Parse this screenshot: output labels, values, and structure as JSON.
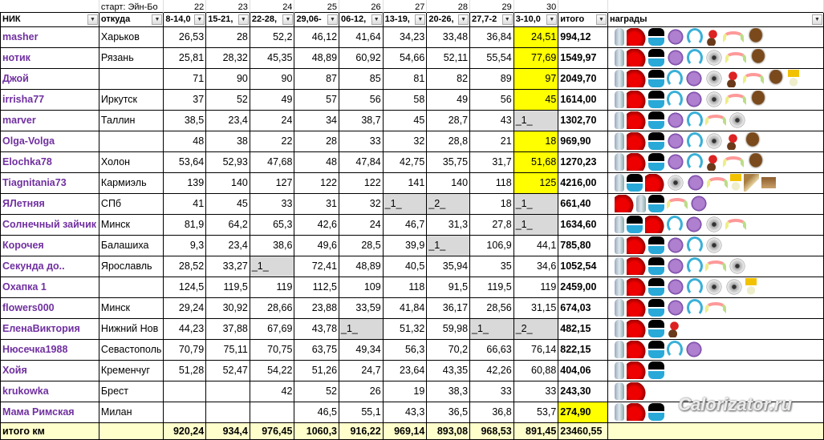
{
  "header": {
    "start_label": "старт: Эйн-Бо",
    "week_numbers": [
      "22",
      "23",
      "24",
      "25",
      "26",
      "27",
      "28",
      "29",
      "30"
    ],
    "columns": [
      "НИК",
      "откуда",
      "8-14,0",
      "15-21,",
      "22-28,",
      "29,06-",
      "06-12,",
      "13-19,",
      "20-26,",
      "27,7-2",
      "3-10,0",
      "итого",
      "награды"
    ]
  },
  "colors": {
    "nick": "#7030a0",
    "highlight": "#ffff00",
    "empty_cell": "#d9d9d9",
    "footer": "#ffffcc"
  },
  "rows": [
    {
      "nick": "masher",
      "city": "Харьков",
      "w": [
        "26,53",
        "28",
        "52,2",
        "46,12",
        "41,64",
        "34,23",
        "33,48",
        "36,84",
        "24,51"
      ],
      "total": "994,12",
      "awards": [
        "bottle",
        "shoes",
        "sneak",
        "bfly",
        "phones",
        "dessert",
        "rainbow",
        "cup"
      ]
    },
    {
      "nick": "нотик",
      "city": "Рязань",
      "w": [
        "25,81",
        "28,32",
        "45,35",
        "48,89",
        "60,92",
        "54,66",
        "52,11",
        "55,54",
        "77,69"
      ],
      "total": "1549,97",
      "awards": [
        "bottle",
        "shoes",
        "sneak",
        "bfly",
        "phones",
        "fan",
        "rainbow",
        "cup"
      ]
    },
    {
      "nick": "Джой",
      "city": "",
      "w": [
        "71",
        "90",
        "90",
        "87",
        "85",
        "81",
        "82",
        "89",
        "97"
      ],
      "total": "2049,70",
      "awards": [
        "bottle",
        "shoes",
        "sneak",
        "phones",
        "bfly",
        "fan",
        "dessert",
        "rainbow",
        "cup",
        "cocktail"
      ]
    },
    {
      "nick": "irrisha77",
      "city": "Иркутск",
      "w": [
        "37",
        "52",
        "49",
        "57",
        "56",
        "58",
        "49",
        "56",
        "45"
      ],
      "total": "1614,00",
      "awards": [
        "bottle",
        "shoes",
        "sneak",
        "phones",
        "bfly",
        "fan",
        "rainbow",
        "cup"
      ]
    },
    {
      "nick": "marver",
      "city": "Таллин",
      "w": [
        "38,5",
        "23,4",
        "24",
        "34",
        "38,7",
        "45",
        "28,7",
        "43",
        "_1_"
      ],
      "total": "1302,70",
      "awards": [
        "bottle",
        "shoes",
        "sneak",
        "bfly",
        "phones",
        "rainbow",
        "fan"
      ]
    },
    {
      "nick": "Olga-Volga",
      "city": "",
      "w": [
        "48",
        "38",
        "22",
        "28",
        "33",
        "32",
        "28,8",
        "21",
        "18"
      ],
      "total": "969,90",
      "awards": [
        "bottle",
        "shoes",
        "sneak",
        "bfly",
        "phones",
        "fan",
        "dessert",
        "cup"
      ]
    },
    {
      "nick": "Elochka78",
      "city": "Холон",
      "w": [
        "53,64",
        "52,93",
        "47,68",
        "48",
        "47,84",
        "42,75",
        "35,75",
        "31,7",
        "51,68"
      ],
      "total": "1270,23",
      "awards": [
        "bottle",
        "shoes",
        "sneak",
        "bfly",
        "phones",
        "dessert",
        "rainbow",
        "cup"
      ]
    },
    {
      "nick": "Tiagnitania73",
      "city": "Кармиэль",
      "w": [
        "139",
        "140",
        "127",
        "122",
        "122",
        "141",
        "140",
        "118",
        "125"
      ],
      "total": "4216,00",
      "awards": [
        "bottle",
        "sneak",
        "shoes",
        "fan",
        "bfly",
        "rainbow",
        "cocktail",
        "chair",
        "box"
      ]
    },
    {
      "nick": "ЯЛетняя",
      "city": "СПб",
      "w": [
        "41",
        "45",
        "33",
        "31",
        "32",
        "_1_",
        "_2_",
        "18",
        "_1_"
      ],
      "total": "661,40",
      "awards": [
        "shoes",
        "bottle",
        "sneak",
        "rainbow",
        "bfly"
      ]
    },
    {
      "nick": "Солнечный зайчик",
      "city": "Минск",
      "w": [
        "81,9",
        "64,2",
        "65,3",
        "42,6",
        "24",
        "46,7",
        "31,3",
        "27,8",
        "_1_"
      ],
      "total": "1634,60",
      "awards": [
        "bottle",
        "sneak",
        "shoes",
        "phones",
        "bfly",
        "fan",
        "rainbow"
      ]
    },
    {
      "nick": "Корочея",
      "city": "Балашиха",
      "w": [
        "9,3",
        "23,4",
        "38,6",
        "49,6",
        "28,5",
        "39,9",
        "_1_",
        "106,9",
        "44,1"
      ],
      "total": "785,80",
      "awards": [
        "bottle",
        "shoes",
        "sneak",
        "bfly",
        "phones",
        "fan"
      ]
    },
    {
      "nick": "Секунда до..",
      "city": "Ярославль",
      "w": [
        "28,52",
        "33,27",
        "_1_",
        "72,41",
        "48,89",
        "40,5",
        "35,94",
        "35",
        "34,6"
      ],
      "total": "1052,54",
      "awards": [
        "bottle",
        "shoes",
        "sneak",
        "bfly",
        "phones",
        "rainbow",
        "fan"
      ]
    },
    {
      "nick": "Охапка 1",
      "city": "",
      "w": [
        "124,5",
        "119,5",
        "119",
        "112,5",
        "109",
        "118",
        "91,5",
        "119,5",
        "119"
      ],
      "total": "2459,00",
      "awards": [
        "bottle",
        "shoes",
        "sneak",
        "bfly",
        "phones",
        "fan",
        "fan",
        "cocktail"
      ]
    },
    {
      "nick": "flowers000",
      "city": "Минск",
      "w": [
        "29,24",
        "30,92",
        "28,66",
        "23,88",
        "33,59",
        "41,84",
        "36,17",
        "28,56",
        "31,15"
      ],
      "total": "674,03",
      "awards": [
        "bottle",
        "shoes",
        "sneak",
        "bfly",
        "phones",
        "rainbow"
      ]
    },
    {
      "nick": "ЕленаВиктория",
      "city": "Нижний Нов",
      "w": [
        "44,23",
        "37,88",
        "67,69",
        "43,78",
        "_1_",
        "51,32",
        "59,98",
        "_1_",
        "_2_"
      ],
      "total": "482,15",
      "awards": [
        "bottle",
        "shoes",
        "sneak",
        "dessert"
      ]
    },
    {
      "nick": "Нюсечка1988",
      "city": "Севастополь",
      "w": [
        "70,79",
        "75,11",
        "70,75",
        "63,75",
        "49,34",
        "56,3",
        "70,2",
        "66,63",
        "76,14"
      ],
      "total": "822,15",
      "awards": [
        "bottle",
        "shoes",
        "sneak",
        "phones",
        "bfly"
      ]
    },
    {
      "nick": "Хойя",
      "city": "Кременчуг",
      "w": [
        "51,28",
        "52,47",
        "54,22",
        "51,26",
        "24,7",
        "23,64",
        "43,35",
        "42,26",
        "60,88"
      ],
      "total": "404,06",
      "awards": [
        "bottle",
        "shoes",
        "sneak"
      ]
    },
    {
      "nick": "krukowka",
      "city": "Брест",
      "w": [
        "",
        "",
        "42",
        "52",
        "26",
        "19",
        "38,3",
        "33",
        "33"
      ],
      "total": "243,30",
      "awards": [
        "bottle",
        "shoes"
      ]
    },
    {
      "nick": "Мама Римская",
      "city": "Милан",
      "w": [
        "",
        "",
        "",
        "46,5",
        "55,1",
        "43,3",
        "36,5",
        "36,8",
        "53,7"
      ],
      "total": "274,90",
      "awards": [
        "bottle",
        "shoes",
        "sneak"
      ]
    }
  ],
  "footer": {
    "label": "итого км",
    "w": [
      "920,24",
      "934,4",
      "976,45",
      "1060,3",
      "916,22",
      "969,14",
      "893,08",
      "968,53",
      "891,45"
    ],
    "total": "23460,55"
  },
  "watermark": "Calorizator.ru"
}
